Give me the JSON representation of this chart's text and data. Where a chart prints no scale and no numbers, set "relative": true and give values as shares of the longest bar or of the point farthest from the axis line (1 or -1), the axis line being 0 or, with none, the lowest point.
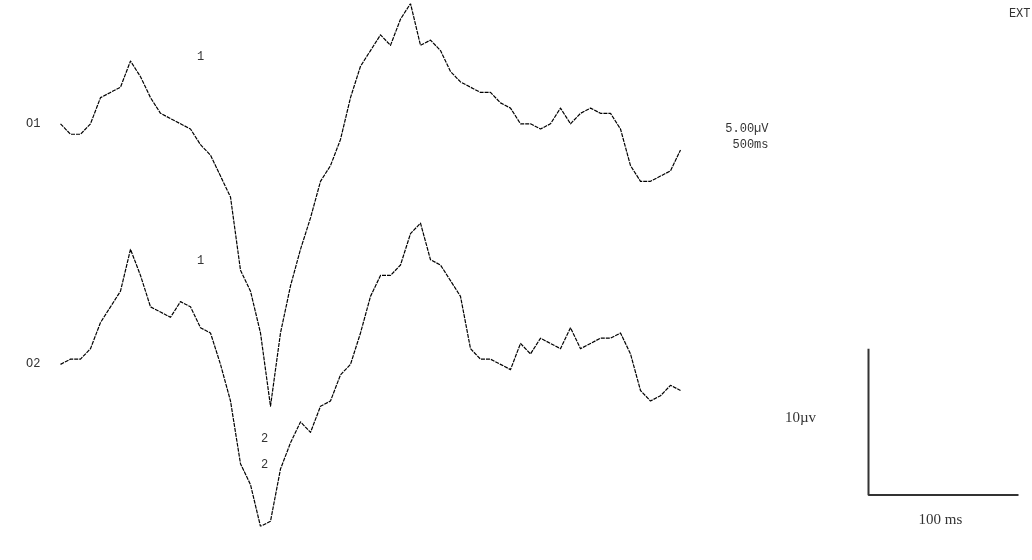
{
  "chart_data": {
    "type": "line",
    "relative": true,
    "line_style": "dashed",
    "marker": "none",
    "grid": false,
    "legend": false,
    "categories": [
      null,
      null,
      null,
      null,
      null,
      null,
      null,
      null,
      null,
      null,
      null,
      null,
      null,
      null,
      null,
      null,
      null,
      null,
      null,
      null,
      null,
      null,
      null,
      null,
      null,
      null,
      null,
      null,
      null,
      null,
      null,
      null,
      null,
      null,
      null,
      null,
      null,
      null,
      null,
      null,
      null,
      null,
      null,
      null,
      null,
      null,
      null,
      null,
      null,
      null,
      null,
      null,
      null,
      null,
      null,
      null,
      null,
      null,
      null,
      null,
      null,
      null,
      null
    ],
    "series": [
      {
        "name": "O1",
        "color": "#000000",
        "values": [
          0.77,
          0.75,
          0.75,
          0.77,
          0.82,
          0.83,
          0.84,
          0.89,
          0.86,
          0.82,
          0.79,
          0.78,
          0.77,
          0.76,
          0.73,
          0.71,
          0.67,
          0.63,
          0.49,
          0.45,
          0.37,
          0.23,
          0.37,
          0.46,
          0.53,
          0.59,
          0.66,
          0.69,
          0.74,
          0.82,
          0.88,
          0.91,
          0.94,
          0.92,
          0.97,
          1,
          0.92,
          0.93,
          0.91,
          0.87,
          0.85,
          0.84,
          0.83,
          0.83,
          0.81,
          0.8,
          0.77,
          0.77,
          0.76,
          0.77,
          0.8,
          0.77,
          0.79,
          0.8,
          0.79,
          0.79,
          0.76,
          0.69,
          0.66,
          0.66,
          0.67,
          0.68,
          0.72
        ]
      },
      {
        "name": "O2",
        "color": "#000000",
        "values": [
          0.31,
          0.32,
          0.32,
          0.34,
          0.39,
          0.42,
          0.45,
          0.53,
          0.48,
          0.42,
          0.41,
          0.4,
          0.43,
          0.42,
          0.38,
          0.37,
          0.31,
          0.24,
          0.12,
          0.08,
          0,
          0.01,
          0.11,
          0.16,
          0.2,
          0.18,
          0.23,
          0.24,
          0.29,
          0.31,
          0.37,
          0.44,
          0.48,
          0.48,
          0.5,
          0.56,
          0.58,
          0.51,
          0.5,
          0.47,
          0.44,
          0.34,
          0.32,
          0.32,
          0.31,
          0.3,
          0.35,
          0.33,
          0.36,
          0.35,
          0.34,
          0.38,
          0.34,
          0.35,
          0.36,
          0.36,
          0.37,
          0.33,
          0.26,
          0.24,
          0.25,
          0.27,
          0.26
        ]
      }
    ],
    "annotations": [
      "1",
      "1",
      "2",
      "2",
      "5.00µV",
      "500ms",
      "10µv",
      "100 ms",
      "EXT"
    ]
  }
}
